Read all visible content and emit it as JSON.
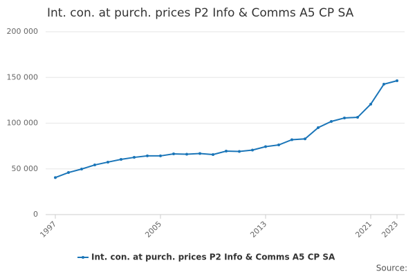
{
  "chart_data": {
    "type": "line",
    "title": "Int. con. at purch. prices P2 Info & Comms A5 CP SA",
    "source": "Source:",
    "x": [
      1997,
      1998,
      1999,
      2000,
      2001,
      2002,
      2003,
      2004,
      2005,
      2006,
      2007,
      2008,
      2009,
      2010,
      2011,
      2012,
      2013,
      2014,
      2015,
      2016,
      2017,
      2018,
      2019,
      2020,
      2021,
      2022,
      2023
    ],
    "series": [
      {
        "name": "Int. con. at purch. prices P2 Info & Comms A5 CP SA",
        "color": "#1a75b8",
        "values": [
          40500,
          46000,
          49800,
          54300,
          57400,
          60400,
          62600,
          64200,
          64200,
          66400,
          66000,
          66800,
          65700,
          69400,
          69100,
          70600,
          74300,
          76200,
          81900,
          82800,
          95100,
          101900,
          105700,
          106400,
          120800,
          142600,
          146400
        ]
      }
    ],
    "xlim": [
      1997,
      2023
    ],
    "xticks": [
      1997,
      2005,
      2013,
      2021,
      2023
    ],
    "ylim": [
      0,
      200000
    ],
    "yticks": [
      0,
      {
        "value": 50000,
        "label": "50 000"
      },
      {
        "value": 100000,
        "label": "100 000"
      },
      {
        "value": 150000,
        "label": "150 000"
      },
      {
        "value": 200000,
        "label": "200 000"
      }
    ],
    "grid": true,
    "legend": "bottom"
  }
}
